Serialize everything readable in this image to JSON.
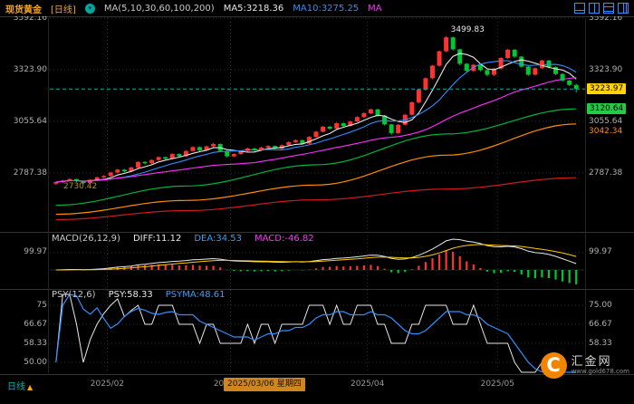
{
  "header": {
    "symbol": "现货黄金",
    "period": "[日线]",
    "ma_settings": "MA(5,10,30,60,100,200)",
    "ma5_label": "MA5:3218.36",
    "ma10_label": "MA10:3275.25",
    "ma30_label": "MA",
    "colors": {
      "symbol": "#f5a623",
      "ma5": "#e8e8e8",
      "ma10": "#2f8fff",
      "ma30": "#ff2fff"
    }
  },
  "main_panel": {
    "left_ticks": [
      "3592.16",
      "3323.90",
      "3055.64",
      "2787.38"
    ],
    "right_ticks": [
      "3592.16",
      "3323.90",
      "3055.64",
      "2787.38"
    ],
    "price_tag": "3223.97",
    "price_tag_bg": "#ffd400",
    "ma60_tag": "3120.64",
    "ma60_tag_bg": "#22cc44",
    "ma100_tag": "3042.34",
    "ma100_tag_color": "#ff8c00",
    "high_label": "3499.83",
    "low_label": "2730.42"
  },
  "macd_panel": {
    "title": "MACD(26,12,9)",
    "diff_label": "DIFF:11.12",
    "dea_label": "DEA:34.53",
    "macd_label": "MACD:-46.82",
    "axis_label": "99.97"
  },
  "psy_panel": {
    "title": "PSY(12,6)",
    "psy_label": "PSY:58.33",
    "psyma_label": "PSYMA:48.61",
    "left_ticks": [
      "75",
      "66.67",
      "58.33",
      "50.00"
    ],
    "right_ticks": [
      "75.00",
      "66.67",
      "58.33"
    ]
  },
  "bottom_bar": {
    "period_label": "日线",
    "arrow": "▲",
    "selected_date": "2025/03/06 星期四"
  },
  "logo": {
    "mark": "C",
    "name_text": "汇金网",
    "url_text": "www.gold678.com"
  },
  "chart_data": {
    "type": "candlestick",
    "title": "现货黄金 日线",
    "y_ticks_values": [
      3592.16,
      3323.9,
      3055.64,
      2787.38
    ],
    "last_price": 3223.97,
    "high_annotation": {
      "index": 57,
      "price": 3499.83,
      "label": "3499.83"
    },
    "low_annotation": {
      "index": 4,
      "price": 2730.42,
      "label": "2730.42"
    },
    "colors": {
      "up": "#ff3232",
      "down": "#00c832",
      "last_price_line": "#00b0a8"
    },
    "x_ticks": [
      {
        "label": "2025/02",
        "i": 8
      },
      {
        "label": "2025/03",
        "i": 26
      },
      {
        "label": "2025/04",
        "i": 46
      },
      {
        "label": "2025/05",
        "i": 65
      }
    ],
    "candles": [
      [
        2732,
        2744,
        2726,
        2740
      ],
      [
        2740,
        2752,
        2736,
        2748
      ],
      [
        2748,
        2760,
        2744,
        2756
      ],
      [
        2756,
        2758,
        2740,
        2745
      ],
      [
        2745,
        2749,
        2730.42,
        2735
      ],
      [
        2735,
        2756,
        2732,
        2752
      ],
      [
        2752,
        2769,
        2748,
        2765
      ],
      [
        2765,
        2776,
        2760,
        2772
      ],
      [
        2772,
        2794,
        2768,
        2790
      ],
      [
        2790,
        2809,
        2785,
        2805
      ],
      [
        2805,
        2808,
        2790,
        2796
      ],
      [
        2796,
        2820,
        2792,
        2816
      ],
      [
        2816,
        2849,
        2812,
        2845
      ],
      [
        2845,
        2848,
        2832,
        2838
      ],
      [
        2838,
        2859,
        2834,
        2855
      ],
      [
        2855,
        2874,
        2850,
        2870
      ],
      [
        2870,
        2873,
        2856,
        2862
      ],
      [
        2862,
        2890,
        2858,
        2886
      ],
      [
        2886,
        2889,
        2869,
        2875
      ],
      [
        2875,
        2906,
        2871,
        2902
      ],
      [
        2902,
        2926,
        2898,
        2922
      ],
      [
        2922,
        2925,
        2899,
        2905
      ],
      [
        2905,
        2930,
        2901,
        2926
      ],
      [
        2926,
        2944,
        2920,
        2938
      ],
      [
        2938,
        2941,
        2896,
        2902
      ],
      [
        2902,
        2906,
        2868,
        2874
      ],
      [
        2874,
        2890,
        2870,
        2886
      ],
      [
        2886,
        2906,
        2882,
        2902
      ],
      [
        2902,
        2919,
        2898,
        2915
      ],
      [
        2915,
        2918,
        2900,
        2906
      ],
      [
        2906,
        2924,
        2902,
        2920
      ],
      [
        2920,
        2932,
        2914,
        2928
      ],
      [
        2928,
        2931,
        2908,
        2914
      ],
      [
        2914,
        2936,
        2910,
        2932
      ],
      [
        2932,
        2952,
        2928,
        2948
      ],
      [
        2948,
        2962,
        2944,
        2958
      ],
      [
        2958,
        2961,
        2934,
        2940
      ],
      [
        2940,
        2979,
        2936,
        2975
      ],
      [
        2975,
        3006,
        2971,
        3002
      ],
      [
        3002,
        3032,
        2998,
        3028
      ],
      [
        3028,
        3032,
        3012,
        3018
      ],
      [
        3018,
        3050,
        3014,
        3046
      ],
      [
        3046,
        3049,
        3026,
        3032
      ],
      [
        3032,
        3059,
        3028,
        3055
      ],
      [
        3055,
        3082,
        3051,
        3078
      ],
      [
        3078,
        3102,
        3074,
        3098
      ],
      [
        3098,
        3122,
        3094,
        3118
      ],
      [
        3118,
        3121,
        3080,
        3086
      ],
      [
        3086,
        3089,
        3034,
        3040
      ],
      [
        3040,
        3043,
        2986,
        2995
      ],
      [
        2995,
        3042,
        2990,
        3038
      ],
      [
        3038,
        3094,
        3034,
        3090
      ],
      [
        3090,
        3159,
        3086,
        3155
      ],
      [
        3155,
        3224,
        3150,
        3220
      ],
      [
        3220,
        3284,
        3215,
        3280
      ],
      [
        3280,
        3349,
        3275,
        3345
      ],
      [
        3345,
        3424,
        3340,
        3420
      ],
      [
        3420,
        3499.83,
        3414,
        3492
      ],
      [
        3492,
        3496,
        3424,
        3430
      ],
      [
        3430,
        3433,
        3348,
        3355
      ],
      [
        3355,
        3359,
        3310,
        3318
      ],
      [
        3318,
        3354,
        3312,
        3350
      ],
      [
        3350,
        3353,
        3316,
        3322
      ],
      [
        3322,
        3326,
        3290,
        3298
      ],
      [
        3298,
        3334,
        3292,
        3330
      ],
      [
        3330,
        3389,
        3325,
        3385
      ],
      [
        3385,
        3432,
        3380,
        3428
      ],
      [
        3428,
        3431,
        3386,
        3392
      ],
      [
        3392,
        3395,
        3334,
        3340
      ],
      [
        3340,
        3343,
        3292,
        3298
      ],
      [
        3298,
        3336,
        3294,
        3332
      ],
      [
        3332,
        3376,
        3328,
        3372
      ],
      [
        3372,
        3375,
        3332,
        3338
      ],
      [
        3338,
        3341,
        3296,
        3302
      ],
      [
        3302,
        3305,
        3262,
        3268
      ],
      [
        3268,
        3271,
        3240,
        3245
      ],
      [
        3245,
        3250,
        3205,
        3223.97
      ]
    ],
    "ma_computed": [
      {
        "name": "MA5",
        "window": 5,
        "color": "#e8e8e8"
      },
      {
        "name": "MA10",
        "window": 10,
        "color": "#2f8fff"
      },
      {
        "name": "MA30",
        "window": 30,
        "color": "#ff2fff"
      }
    ],
    "ma_sampled": [
      {
        "name": "MA60",
        "color": "#00b33c",
        "samples": [
          2620,
          2720,
          2830,
          2990,
          3120.64
        ]
      },
      {
        "name": "MA100",
        "color": "#ff8c00",
        "samples": [
          2573,
          2645,
          2725,
          2880,
          3042.34
        ]
      },
      {
        "name": "MA200",
        "color": "#d01a1a",
        "samples": [
          2545,
          2592,
          2648,
          2704,
          2763
        ]
      }
    ],
    "indicators": {
      "macd": {
        "params": [
          26,
          12,
          9
        ],
        "diff": 11.12,
        "dea": 34.53,
        "macd": -46.82,
        "axis_value": 99.97
      },
      "psy": {
        "params": [
          12,
          6
        ],
        "psy": 58.33,
        "psyma": 48.61,
        "ticks": [
          75,
          66.67,
          58.33,
          50
        ]
      }
    }
  }
}
